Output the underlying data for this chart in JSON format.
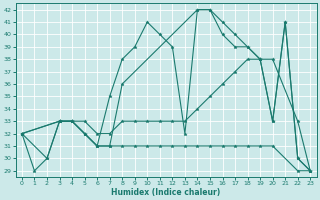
{
  "xlabel": "Humidex (Indice chaleur)",
  "background_color": "#cce9e9",
  "grid_color": "#b0d4d4",
  "line_color": "#1a7a6e",
  "xlim": [
    -0.5,
    23.5
  ],
  "ylim": [
    28.5,
    42.5
  ],
  "yticks": [
    29,
    30,
    31,
    32,
    33,
    34,
    35,
    36,
    37,
    38,
    39,
    40,
    41,
    42
  ],
  "xticks": [
    0,
    1,
    2,
    3,
    4,
    5,
    6,
    7,
    8,
    9,
    10,
    11,
    12,
    13,
    14,
    15,
    16,
    17,
    18,
    19,
    20,
    21,
    22,
    23
  ],
  "lines": [
    {
      "x": [
        0,
        1,
        2,
        3,
        4,
        5,
        6,
        7,
        8,
        9,
        10,
        11,
        12,
        13,
        14,
        15,
        16,
        17,
        18,
        19,
        20,
        21,
        22,
        23
      ],
      "y": [
        32,
        29,
        30,
        33,
        33,
        32,
        31,
        35,
        38,
        39,
        41,
        40,
        39,
        32,
        42,
        42,
        40,
        39,
        39,
        38,
        33,
        41,
        30,
        29
      ]
    },
    {
      "x": [
        0,
        3,
        4,
        5,
        6,
        7,
        8,
        9,
        10,
        11,
        12,
        13,
        14,
        15,
        16,
        17,
        18,
        19,
        20,
        22,
        23
      ],
      "y": [
        32,
        33,
        33,
        33,
        32,
        32,
        33,
        33,
        33,
        33,
        33,
        33,
        34,
        35,
        36,
        37,
        38,
        38,
        38,
        33,
        29
      ]
    },
    {
      "x": [
        0,
        3,
        4,
        5,
        6,
        7,
        8,
        9,
        10,
        11,
        12,
        13,
        14,
        15,
        16,
        17,
        18,
        19,
        20,
        22,
        23
      ],
      "y": [
        32,
        33,
        33,
        32,
        31,
        31,
        31,
        31,
        31,
        31,
        31,
        31,
        31,
        31,
        31,
        31,
        31,
        31,
        31,
        29,
        29
      ]
    },
    {
      "x": [
        0,
        2,
        3,
        4,
        5,
        6,
        7,
        8,
        14,
        15,
        16,
        17,
        18,
        19,
        20,
        21,
        22,
        23
      ],
      "y": [
        32,
        30,
        33,
        33,
        32,
        31,
        31,
        36,
        42,
        42,
        41,
        40,
        39,
        38,
        33,
        41,
        30,
        29
      ]
    }
  ]
}
